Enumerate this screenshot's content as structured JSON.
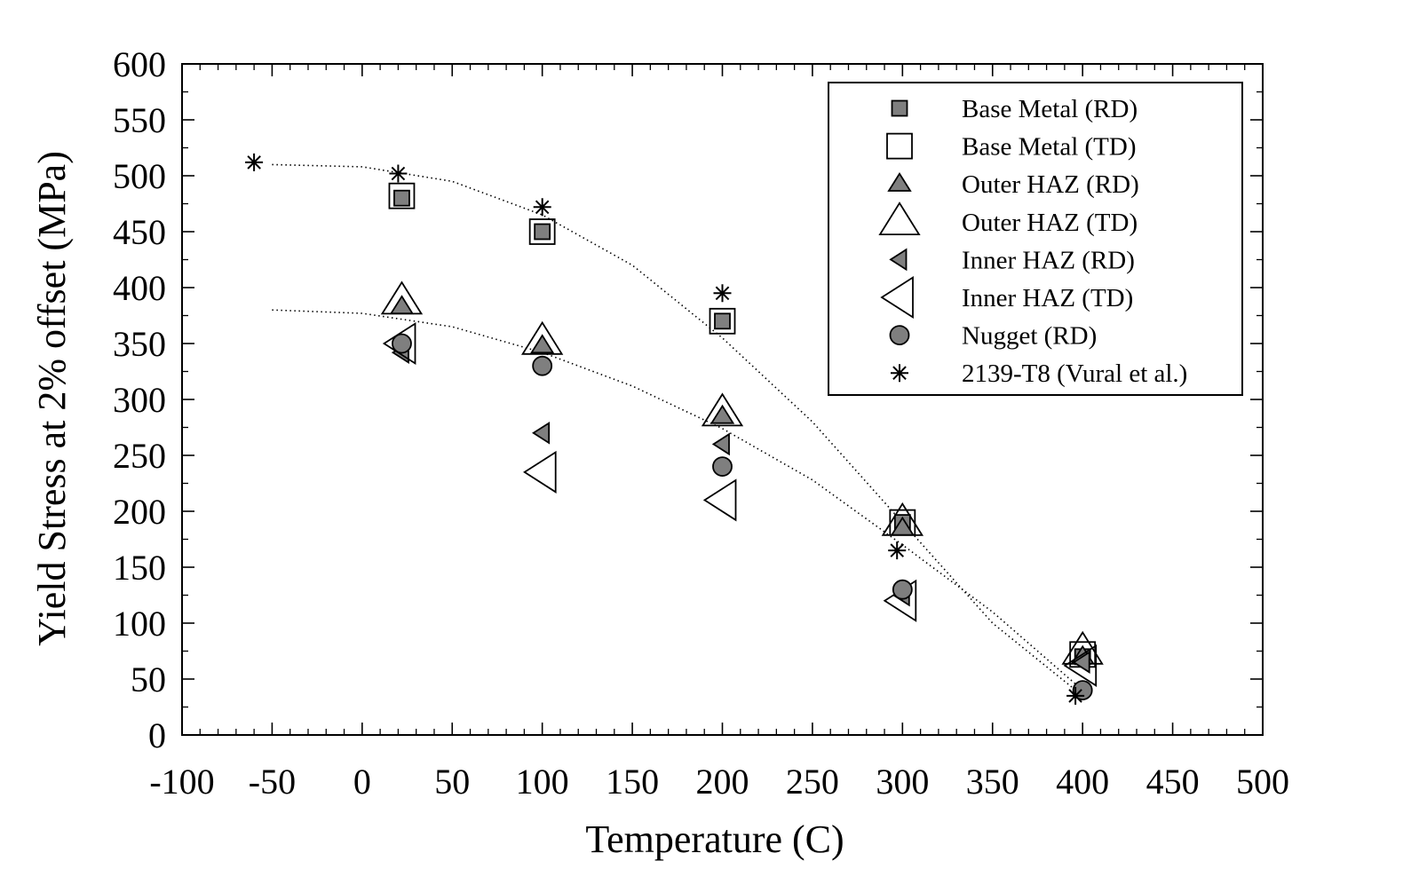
{
  "chart_data": {
    "type": "scatter",
    "xlabel": "Temperature (C)",
    "ylabel": "Yield Stress at 2% offset (MPa)",
    "xlim": [
      -100,
      500
    ],
    "ylim": [
      0,
      600
    ],
    "x_ticks": [
      -100,
      -50,
      0,
      50,
      100,
      150,
      200,
      250,
      300,
      350,
      400,
      450,
      500
    ],
    "y_ticks": [
      0,
      50,
      100,
      150,
      200,
      250,
      300,
      350,
      400,
      450,
      500,
      550,
      600
    ],
    "legend_position": "top-right",
    "grid": false,
    "series": [
      {
        "name": "Base Metal (RD)",
        "marker": "square",
        "filled": true,
        "size": "small",
        "x": [
          22,
          100,
          200,
          300,
          400
        ],
        "y": [
          480,
          450,
          370,
          190,
          70
        ]
      },
      {
        "name": "Base Metal (TD)",
        "marker": "square",
        "filled": false,
        "size": "large",
        "x": [
          22,
          100,
          200,
          300,
          400
        ],
        "y": [
          482,
          450,
          370,
          190,
          72
        ]
      },
      {
        "name": "Outer HAZ (RD)",
        "marker": "triangle-up",
        "filled": true,
        "size": "small",
        "x": [
          22,
          100,
          200,
          300,
          400
        ],
        "y": [
          383,
          348,
          285,
          185,
          70
        ]
      },
      {
        "name": "Outer HAZ (TD)",
        "marker": "triangle-up",
        "filled": false,
        "size": "large",
        "x": [
          22,
          100,
          200,
          300,
          400
        ],
        "y": [
          388,
          352,
          288,
          190,
          75
        ]
      },
      {
        "name": "Inner HAZ (RD)",
        "marker": "triangle-left",
        "filled": true,
        "size": "small",
        "x": [
          22,
          100,
          200,
          300,
          400
        ],
        "y": [
          342,
          270,
          260,
          125,
          65
        ]
      },
      {
        "name": "Inner HAZ (TD)",
        "marker": "triangle-left",
        "filled": false,
        "size": "large",
        "x": [
          22,
          100,
          200,
          300,
          400
        ],
        "y": [
          350,
          235,
          210,
          120,
          62
        ]
      },
      {
        "name": "Nugget (RD)",
        "marker": "circle",
        "filled": true,
        "size": "small",
        "x": [
          22,
          100,
          200,
          300,
          400
        ],
        "y": [
          350,
          330,
          240,
          130,
          40
        ]
      },
      {
        "name": "2139-T8 (Vural et al.)",
        "marker": "asterisk",
        "filled": false,
        "size": "small",
        "x": [
          -60,
          20,
          100,
          200,
          297,
          396
        ],
        "y": [
          512,
          502,
          472,
          395,
          165,
          35
        ]
      }
    ],
    "trend_lines": [
      {
        "x": [
          -50,
          0,
          50,
          100,
          150,
          200,
          250,
          300,
          350,
          400
        ],
        "y": [
          510,
          508,
          495,
          465,
          420,
          355,
          280,
          190,
          100,
          35
        ]
      },
      {
        "x": [
          -50,
          0,
          50,
          100,
          150,
          200,
          250,
          300,
          350,
          400
        ],
        "y": [
          380,
          377,
          365,
          342,
          312,
          274,
          228,
          170,
          110,
          40
        ]
      }
    ],
    "style": {
      "fill_color": "#7f7f7f",
      "open_fill_color": "#ffffff",
      "stroke_color": "#000000",
      "trend_color": "#000000"
    }
  }
}
